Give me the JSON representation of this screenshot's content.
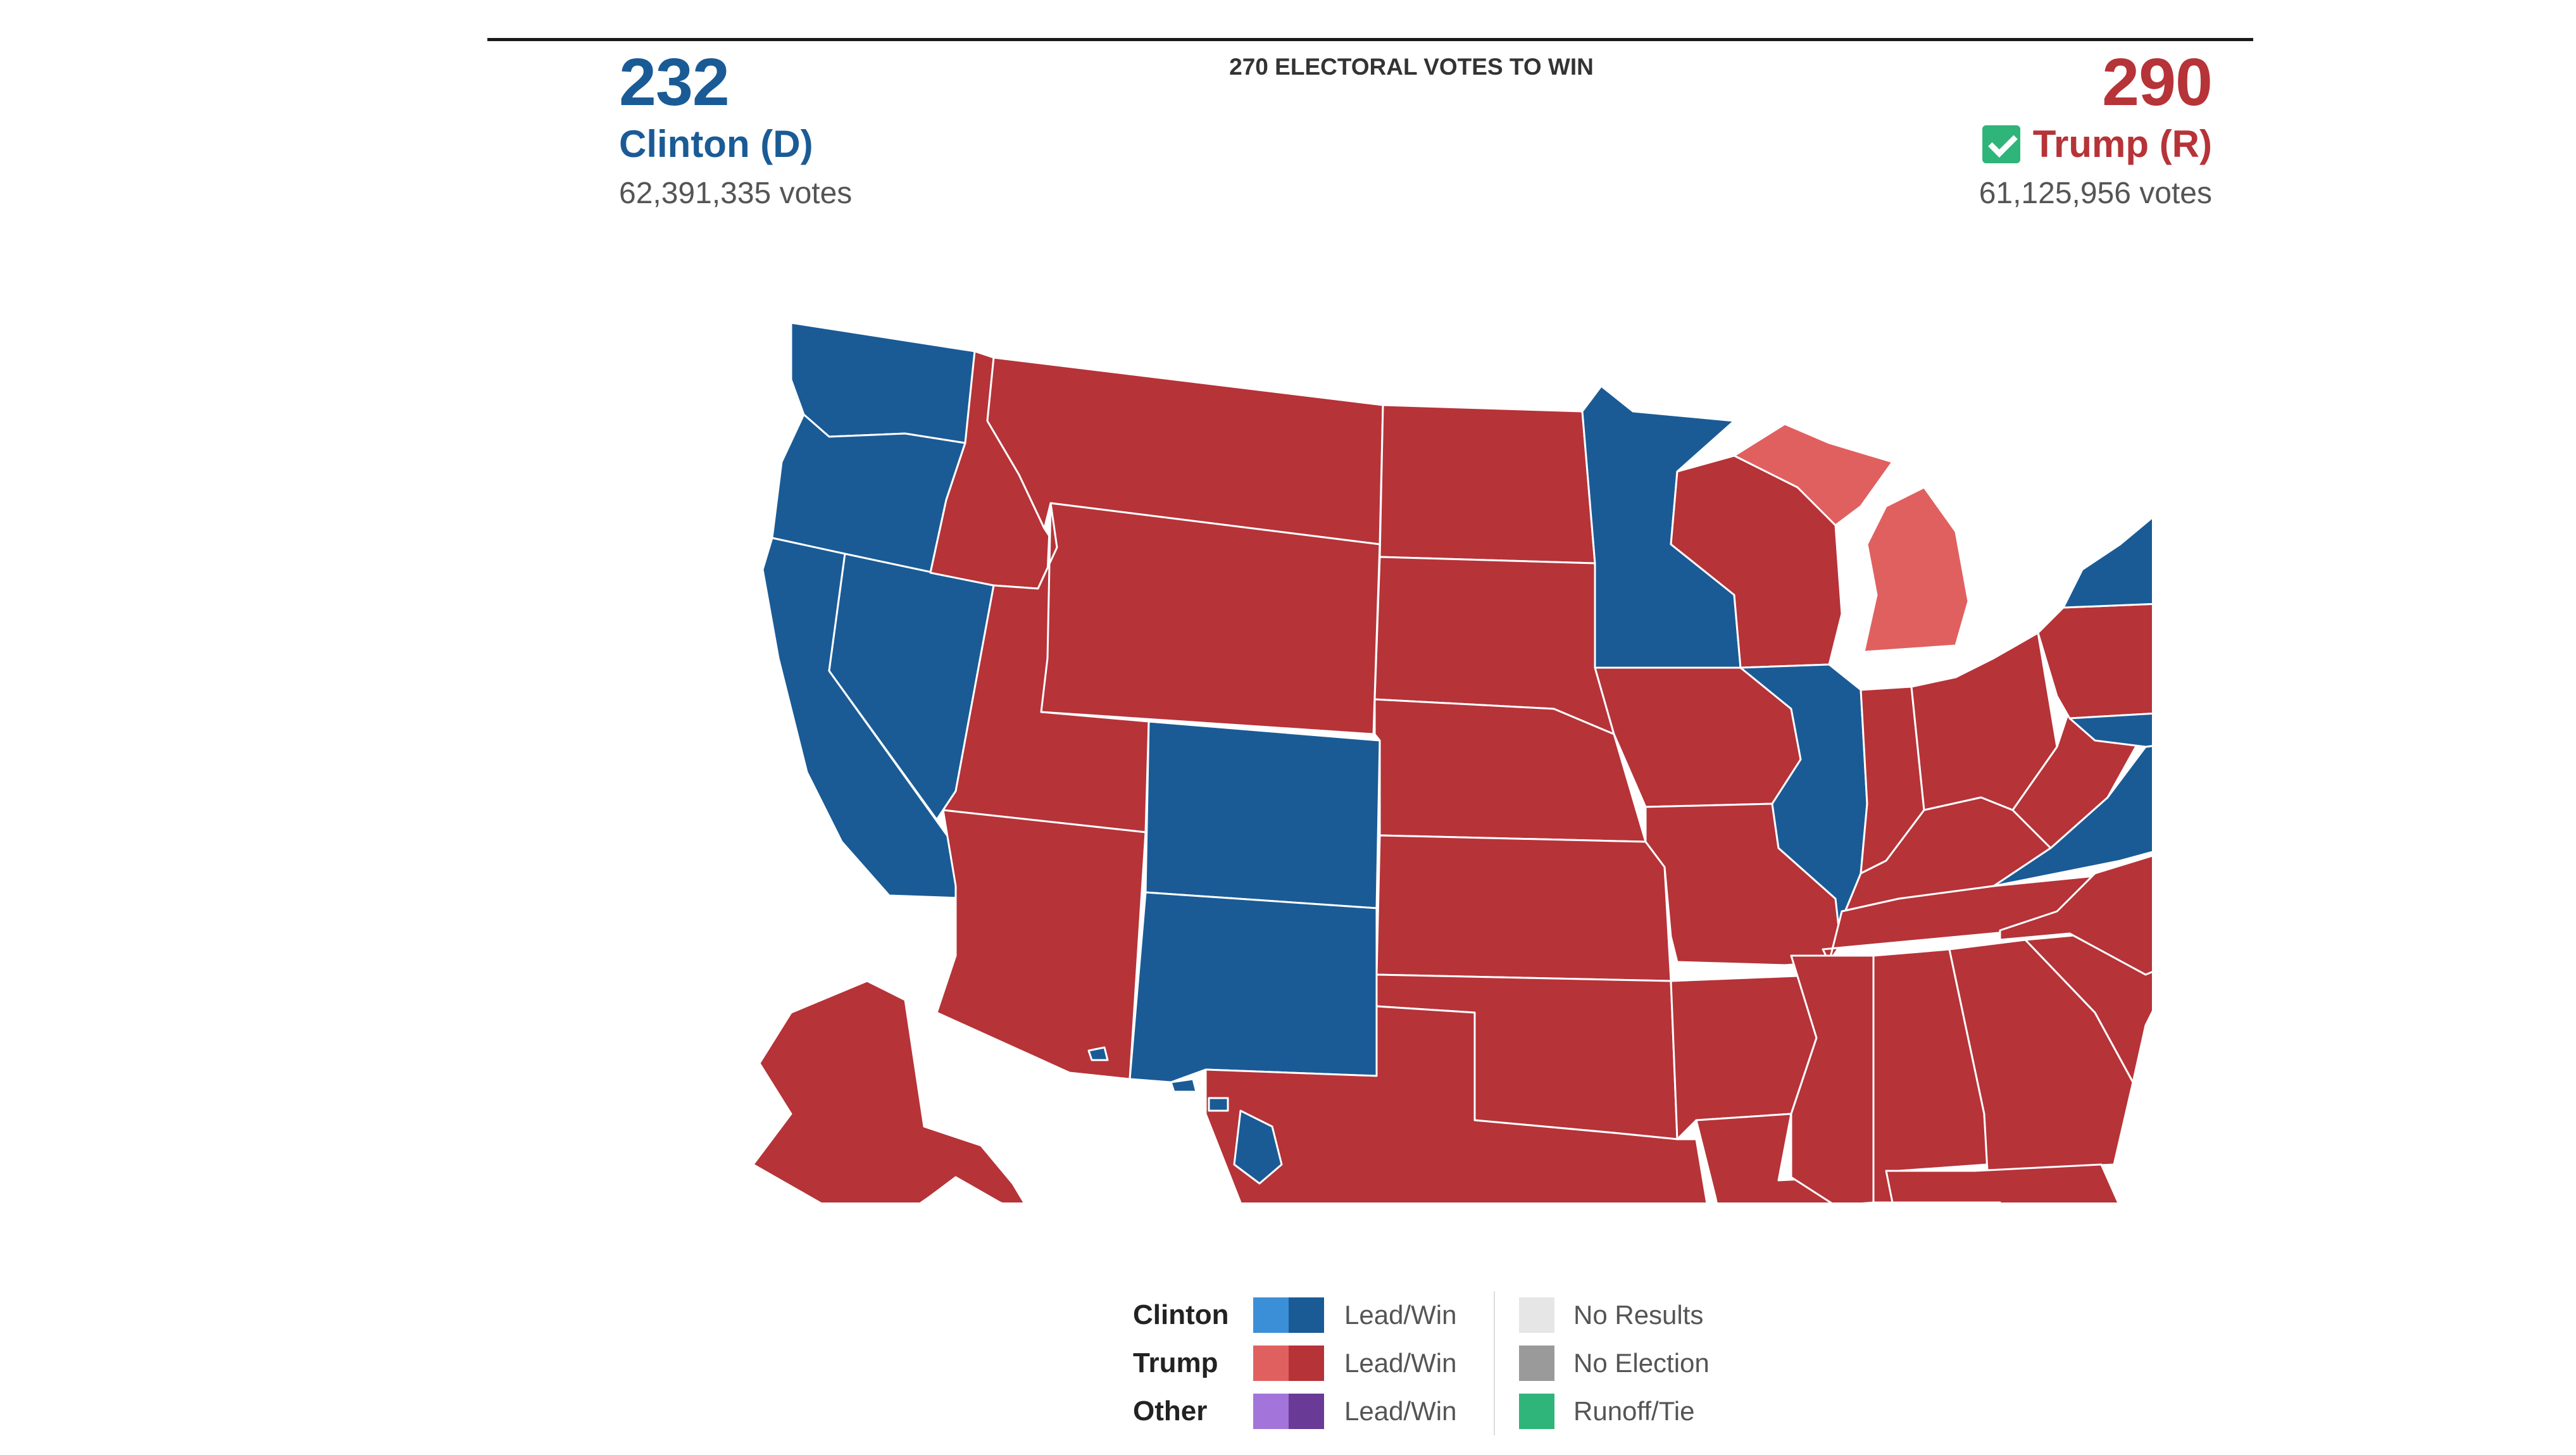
{
  "header": {
    "win_label": "270 ELECTORAL VOTES TO WIN"
  },
  "candidates": {
    "left": {
      "ev": "232",
      "name": "Clinton (D)",
      "votes": "62,391,335 votes",
      "color": "#1a5b96"
    },
    "right": {
      "ev": "290",
      "name": "Trump (R)",
      "votes": "61,125,956 votes",
      "color": "#b63338",
      "winner_check_color": "#2fb57a"
    }
  },
  "map": {
    "colors": {
      "dem_win": "#1a5b96",
      "rep_win": "#b63338",
      "rep_lead": "#e06060",
      "border": "#ffffff"
    },
    "states": {
      "WA": "dem_win",
      "OR": "dem_win",
      "CA": "dem_win",
      "NV": "dem_win",
      "CO": "dem_win",
      "NM": "dem_win",
      "MN": "dem_win",
      "IL": "dem_win",
      "VA": "dem_win",
      "NY": "dem_win",
      "NJ": "dem_win",
      "MD": "dem_win",
      "DE": "dem_win",
      "CT": "dem_win",
      "RI": "dem_win",
      "MA": "dem_win",
      "VT": "dem_win",
      "NH": "dem_win",
      "ME": "dem_win",
      "HI": "dem_win",
      "ID": "rep_win",
      "MT": "rep_win",
      "WY": "rep_win",
      "UT": "rep_win",
      "AZ": "rep_win",
      "ND": "rep_win",
      "SD": "rep_win",
      "NE": "rep_win",
      "KS": "rep_win",
      "OK": "rep_win",
      "TX": "rep_win",
      "IA": "rep_win",
      "MO": "rep_win",
      "AR": "rep_win",
      "LA": "rep_win",
      "WI": "rep_win",
      "IN": "rep_win",
      "OH": "rep_win",
      "KY": "rep_win",
      "TN": "rep_win",
      "MS": "rep_win",
      "AL": "rep_win",
      "GA": "rep_win",
      "FL": "rep_win",
      "SC": "rep_win",
      "NC": "rep_win",
      "WV": "rep_win",
      "PA": "rep_win",
      "AK": "rep_win",
      "MI": "rep_lead"
    }
  },
  "legend": {
    "rows": [
      {
        "candidate": "Clinton",
        "label": "Lead/Win",
        "light": "#3b8fd6",
        "dark": "#1a5b96"
      },
      {
        "candidate": "Trump",
        "label": "Lead/Win",
        "light": "#e06060",
        "dark": "#b63338"
      },
      {
        "candidate": "Other",
        "label": "Lead/Win",
        "light": "#a374d9",
        "dark": "#6a3b96"
      }
    ],
    "status": [
      {
        "label": "No Results",
        "color": "#e6e6e6"
      },
      {
        "label": "No Election",
        "color": "#9a9a9a"
      },
      {
        "label": "Runoff/Tie",
        "color": "#2fb57a"
      }
    ]
  }
}
